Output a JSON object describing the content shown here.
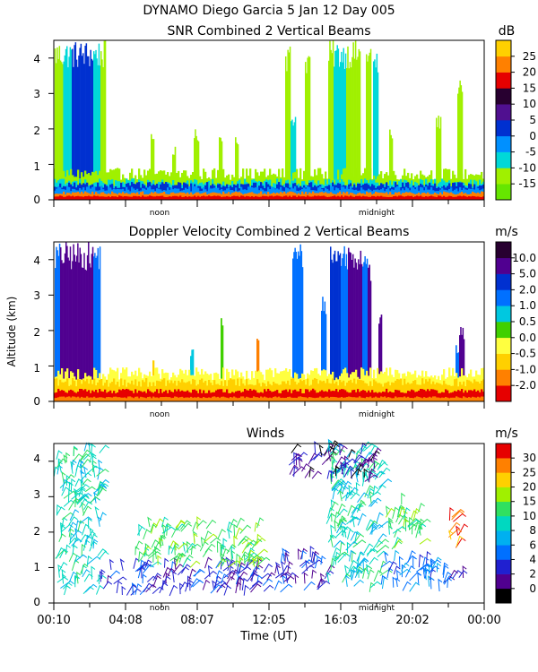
{
  "header": {
    "title": "DYNAMO Diego Garcia    5 Jan 12 Day 005"
  },
  "chart_data": [
    {
      "type": "heatmap",
      "title": "SNR Combined 2 Vertical Beams",
      "units": "dB",
      "ylim": [
        0,
        4.5
      ],
      "y_ticks": [
        "0",
        "1",
        "2",
        "3",
        "4"
      ],
      "x_markers": [
        "noon",
        "midnight"
      ],
      "colorbar": {
        "labels": [
          "-15",
          "-10",
          "-5",
          "0",
          "5",
          "10",
          "15",
          "20",
          "25"
        ],
        "colors": [
          "#66e600",
          "#a0f000",
          "#00d8d8",
          "#0090ff",
          "#0030d0",
          "#501090",
          "#280030",
          "#e60000",
          "#ff8000",
          "#ffd000"
        ]
      },
      "columns": [
        {
          "t0": 0.04,
          "t1": 0.52,
          "top": 4.5,
          "c": 1
        },
        {
          "t0": 0.52,
          "t1": 1.0,
          "top": 4.5,
          "c": 2
        },
        {
          "t0": 1.0,
          "t1": 2.2,
          "top": 4.5,
          "c": 4
        },
        {
          "t0": 2.2,
          "t1": 2.6,
          "top": 4.5,
          "c": 2
        },
        {
          "t0": 2.6,
          "t1": 2.9,
          "top": 4.5,
          "c": 1
        },
        {
          "t0": 5.4,
          "t1": 5.6,
          "top": 1.9,
          "c": 1
        },
        {
          "t0": 6.6,
          "t1": 6.8,
          "top": 1.5,
          "c": 1
        },
        {
          "t0": 7.8,
          "t1": 8.1,
          "top": 2.0,
          "c": 1
        },
        {
          "t0": 9.2,
          "t1": 9.4,
          "top": 1.9,
          "c": 1
        },
        {
          "t0": 10.1,
          "t1": 10.3,
          "top": 1.9,
          "c": 1
        },
        {
          "t0": 12.9,
          "t1": 13.2,
          "top": 4.4,
          "c": 1
        },
        {
          "t0": 13.2,
          "t1": 13.5,
          "top": 2.5,
          "c": 2
        },
        {
          "t0": 14.0,
          "t1": 14.3,
          "top": 4.3,
          "c": 1
        },
        {
          "t0": 15.3,
          "t1": 15.6,
          "top": 4.5,
          "c": 1
        },
        {
          "t0": 15.6,
          "t1": 16.3,
          "top": 4.5,
          "c": 2
        },
        {
          "t0": 16.3,
          "t1": 17.1,
          "top": 4.5,
          "c": 1
        },
        {
          "t0": 17.4,
          "t1": 17.7,
          "top": 4.5,
          "c": 1
        },
        {
          "t0": 17.8,
          "t1": 18.1,
          "top": 4.2,
          "c": 2
        },
        {
          "t0": 18.7,
          "t1": 18.9,
          "top": 2.0,
          "c": 1
        },
        {
          "t0": 21.3,
          "t1": 21.6,
          "top": 2.4,
          "c": 1
        },
        {
          "t0": 22.5,
          "t1": 22.8,
          "top": 3.6,
          "c": 1
        }
      ],
      "surface_layers": [
        {
          "top": 0.75,
          "c": 1
        },
        {
          "top": 0.5,
          "c": 2
        },
        {
          "top": 0.42,
          "c": 4
        },
        {
          "top": 0.32,
          "c": 3
        },
        {
          "top": 0.2,
          "c": 8
        },
        {
          "top": 0.1,
          "c": 7
        }
      ]
    },
    {
      "type": "heatmap",
      "title": "Doppler Velocity Combined 2 Vertical Beams",
      "units": "m/s",
      "ylim": [
        0,
        4.5
      ],
      "y_ticks": [
        "0",
        "1",
        "2",
        "3",
        "4"
      ],
      "ylabel": "Altitude (km)",
      "x_markers": [
        "noon",
        "midnight"
      ],
      "colorbar": {
        "labels": [
          "-2.0",
          "-1.0",
          "-0.5",
          "0.0",
          "0.5",
          "1.0",
          "2.0",
          "5.0",
          "10.0"
        ],
        "colors": [
          "#e60000",
          "#ff8000",
          "#ffd000",
          "#ffff40",
          "#40d000",
          "#00c8e0",
          "#0070ff",
          "#0030d0",
          "#500090",
          "#280030"
        ]
      },
      "columns": [
        {
          "t0": 0.05,
          "t1": 0.35,
          "top": 4.5,
          "c": 6
        },
        {
          "t0": 0.35,
          "t1": 2.2,
          "top": 4.5,
          "c": 8
        },
        {
          "t0": 2.2,
          "t1": 2.6,
          "top": 4.5,
          "c": 6
        },
        {
          "t0": 5.5,
          "t1": 5.6,
          "top": 1.3,
          "c": 2
        },
        {
          "t0": 7.6,
          "t1": 7.8,
          "top": 1.5,
          "c": 5
        },
        {
          "t0": 9.3,
          "t1": 9.45,
          "top": 2.4,
          "c": 4
        },
        {
          "t0": 11.3,
          "t1": 11.45,
          "top": 2.0,
          "c": 1
        },
        {
          "t0": 13.3,
          "t1": 13.9,
          "top": 4.5,
          "c": 6
        },
        {
          "t0": 14.9,
          "t1": 15.2,
          "top": 3.0,
          "c": 6
        },
        {
          "t0": 15.4,
          "t1": 16.0,
          "top": 4.5,
          "c": 7
        },
        {
          "t0": 16.0,
          "t1": 16.4,
          "top": 4.5,
          "c": 6
        },
        {
          "t0": 16.4,
          "t1": 17.2,
          "top": 4.5,
          "c": 8
        },
        {
          "t0": 17.2,
          "t1": 17.5,
          "top": 4.5,
          "c": 6
        },
        {
          "t0": 17.5,
          "t1": 17.7,
          "top": 4.0,
          "c": 8
        },
        {
          "t0": 18.1,
          "t1": 18.3,
          "top": 2.5,
          "c": 8
        },
        {
          "t0": 22.4,
          "t1": 22.6,
          "top": 1.6,
          "c": 6
        },
        {
          "t0": 22.6,
          "t1": 22.9,
          "top": 2.1,
          "c": 8
        }
      ],
      "surface_layers": [
        {
          "top": 0.8,
          "c": 3
        },
        {
          "top": 0.55,
          "c": 2
        },
        {
          "top": 0.3,
          "c": 0
        },
        {
          "top": 0.12,
          "c": 1
        }
      ]
    },
    {
      "type": "scatter",
      "title": "Winds",
      "units": "m/s",
      "ylim": [
        0,
        4.5
      ],
      "y_ticks": [
        "0",
        "1",
        "2",
        "3",
        "4"
      ],
      "xlabel": "Time (UT)",
      "x_tick_labels": [
        "00:10",
        "04:08",
        "08:07",
        "12:05",
        "16:03",
        "20:02",
        "00:00"
      ],
      "x_markers": [
        "noon",
        "midnight"
      ],
      "colorbar": {
        "labels": [
          "0",
          "2",
          "4",
          "6",
          "8",
          "10",
          "15",
          "20",
          "25",
          "30"
        ],
        "colors": [
          "#000000",
          "#500090",
          "#2020d0",
          "#0070ff",
          "#00b0f0",
          "#00d8c0",
          "#30e060",
          "#a0f000",
          "#ffd000",
          "#ff8000",
          "#e60000"
        ]
      },
      "clusters": [
        {
          "t0": 0.0,
          "t1": 2.6,
          "h0": 0.2,
          "h1": 4.3,
          "c": 5
        },
        {
          "t0": 2.6,
          "t1": 12.5,
          "h0": 0.2,
          "h1": 1.0,
          "c": 2
        },
        {
          "t0": 4.5,
          "t1": 11.5,
          "h0": 1.0,
          "h1": 2.2,
          "c": 6
        },
        {
          "t0": 12.5,
          "t1": 15.2,
          "h0": 0.3,
          "h1": 1.3,
          "c": 2
        },
        {
          "t0": 13.0,
          "t1": 15.5,
          "h0": 3.5,
          "h1": 4.3,
          "c": 1
        },
        {
          "t0": 15.2,
          "t1": 18.2,
          "h0": 0.3,
          "h1": 4.3,
          "c": 5
        },
        {
          "t0": 15.5,
          "t1": 18.0,
          "h0": 3.4,
          "h1": 4.3,
          "c": 1
        },
        {
          "t0": 18.2,
          "t1": 21.5,
          "h0": 0.3,
          "h1": 1.2,
          "c": 3
        },
        {
          "t0": 18.5,
          "t1": 20.5,
          "h0": 1.5,
          "h1": 2.8,
          "c": 6
        },
        {
          "t0": 22.0,
          "t1": 22.6,
          "h0": 1.3,
          "h1": 2.6,
          "c": 9
        },
        {
          "t0": 21.5,
          "t1": 23.0,
          "h0": 0.3,
          "h1": 0.8,
          "c": 2
        }
      ]
    }
  ]
}
